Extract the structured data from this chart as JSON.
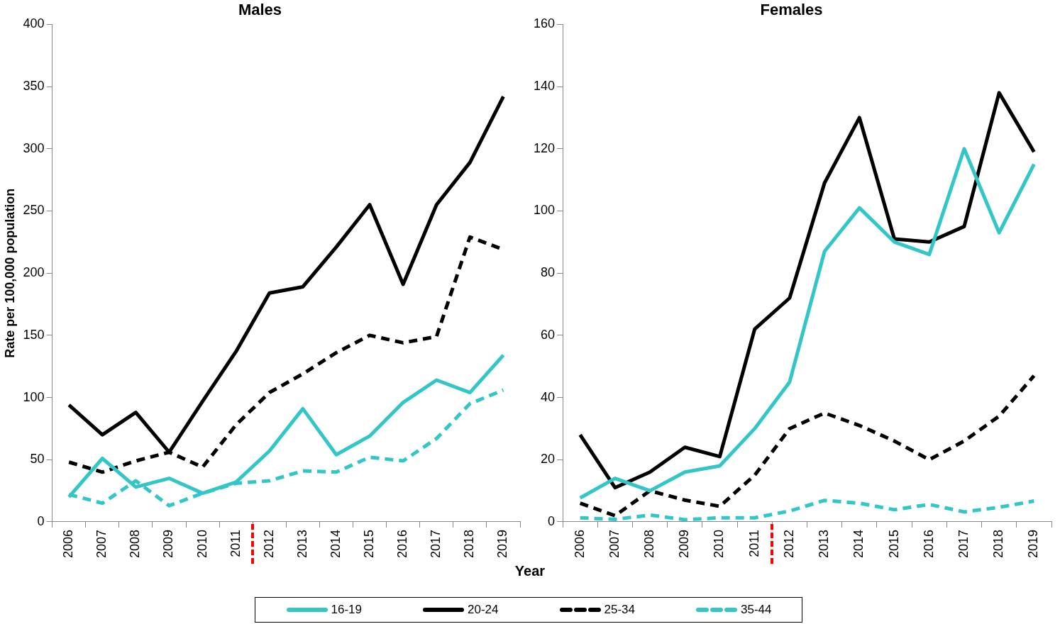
{
  "chart_data": [
    {
      "type": "line",
      "title": "Males",
      "xlabel": "Year",
      "ylabel": "Rate per 100,000 population",
      "legend": "bottom",
      "grid": false,
      "categories": [
        "2006",
        "2007",
        "2008",
        "2009",
        "2010",
        "2011",
        "2012",
        "2013",
        "2014",
        "2015",
        "2016",
        "2017",
        "2018",
        "2019"
      ],
      "ylim": [
        0,
        400
      ],
      "yticks": [
        0,
        50,
        100,
        150,
        200,
        250,
        300,
        350,
        400
      ],
      "series": [
        {
          "name": "16-19",
          "color": "#33c6c6",
          "line_style": "solid",
          "values": [
            20,
            51,
            28,
            35,
            23,
            32,
            57,
            91,
            54,
            69,
            96,
            114,
            104,
            134
          ]
        },
        {
          "name": "20-24",
          "color": "#000000",
          "line_style": "solid",
          "values": [
            94,
            70,
            88,
            56,
            97,
            137,
            184,
            189,
            221,
            255,
            191,
            255,
            289,
            342
          ]
        },
        {
          "name": "25-34",
          "color": "#000000",
          "line_style": "dashed",
          "values": [
            48,
            40,
            49,
            56,
            44,
            78,
            104,
            119,
            136,
            150,
            144,
            149,
            229,
            219
          ]
        },
        {
          "name": "35-44",
          "color": "#33c6c6",
          "line_style": "dashed",
          "values": [
            22,
            15,
            33,
            13,
            23,
            31,
            33,
            41,
            40,
            52,
            49,
            67,
            95,
            106
          ]
        }
      ]
    },
    {
      "type": "line",
      "title": "Females",
      "grid": false,
      "categories": [
        "2006",
        "2007",
        "2008",
        "2009",
        "2010",
        "2011",
        "2012",
        "2013",
        "2014",
        "2015",
        "2016",
        "2017",
        "2018",
        "2019"
      ],
      "ylim": [
        0,
        160
      ],
      "yticks": [
        0,
        20,
        40,
        60,
        80,
        100,
        120,
        140,
        160
      ],
      "series": [
        {
          "color": "#33c6c6",
          "line_style": "solid",
          "values": [
            7.7,
            14,
            10,
            16,
            18,
            30,
            45,
            87,
            101,
            90,
            86,
            120,
            93,
            115
          ]
        },
        {
          "color": "#000000",
          "line_style": "solid",
          "values": [
            28,
            11,
            16,
            24,
            21,
            62,
            72,
            109,
            130,
            91,
            90,
            95,
            138,
            119
          ]
        },
        {
          "color": "#000000",
          "line_style": "dashed",
          "values": [
            6,
            2,
            10,
            7,
            5,
            15,
            30,
            35,
            31,
            26,
            20,
            26,
            34,
            47
          ]
        },
        {
          "color": "#33c6c6",
          "line_style": "dashed",
          "values": [
            1.3,
            0.8,
            2.2,
            0.7,
            1.3,
            1.3,
            3.5,
            6.9,
            6,
            3.9,
            5.6,
            3.2,
            4.7,
            6.7
          ]
        }
      ]
    }
  ]
}
